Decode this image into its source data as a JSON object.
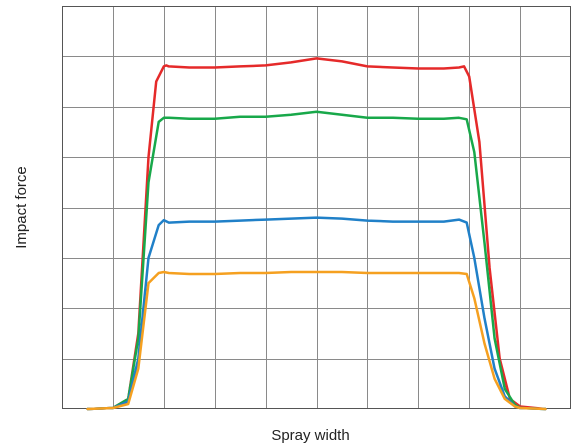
{
  "chart_data": {
    "type": "line",
    "title": "",
    "xlabel": "Spray width",
    "ylabel": "Impact force",
    "xlim": [
      0,
      10
    ],
    "ylim": [
      0,
      8
    ],
    "grid": true,
    "x_ticks_shown": false,
    "y_ticks_shown": false,
    "series": [
      {
        "color": "#e52a2a",
        "x": [
          0.5,
          1.0,
          1.3,
          1.5,
          1.7,
          1.85,
          2.0,
          2.05,
          2.1,
          2.5,
          3.0,
          3.5,
          4.0,
          4.5,
          5.0,
          5.5,
          6.0,
          6.5,
          7.0,
          7.5,
          7.8,
          7.9,
          8.0,
          8.2,
          8.4,
          8.6,
          8.8,
          9.0,
          9.5
        ],
        "y": [
          0.0,
          0.02,
          0.2,
          1.5,
          5.0,
          6.5,
          6.8,
          6.82,
          6.8,
          6.78,
          6.78,
          6.8,
          6.82,
          6.88,
          6.96,
          6.9,
          6.8,
          6.78,
          6.76,
          6.76,
          6.78,
          6.8,
          6.6,
          5.3,
          2.8,
          1.0,
          0.2,
          0.05,
          0.0
        ]
      },
      {
        "color": "#18a84a",
        "x": [
          0.5,
          1.0,
          1.3,
          1.5,
          1.7,
          1.9,
          2.0,
          2.1,
          2.5,
          3.0,
          3.5,
          4.0,
          4.5,
          5.0,
          5.5,
          6.0,
          6.5,
          7.0,
          7.5,
          7.8,
          7.95,
          8.1,
          8.3,
          8.5,
          8.7,
          8.9,
          9.0,
          9.5
        ],
        "y": [
          0.0,
          0.02,
          0.2,
          1.4,
          4.5,
          5.7,
          5.78,
          5.78,
          5.76,
          5.76,
          5.8,
          5.8,
          5.84,
          5.9,
          5.84,
          5.78,
          5.78,
          5.76,
          5.76,
          5.78,
          5.75,
          5.1,
          3.3,
          1.4,
          0.4,
          0.08,
          0.02,
          0.0
        ]
      },
      {
        "color": "#2080c8",
        "x": [
          0.5,
          1.0,
          1.3,
          1.5,
          1.7,
          1.9,
          2.0,
          2.1,
          2.5,
          3.0,
          3.5,
          4.0,
          4.5,
          5.0,
          5.5,
          6.0,
          6.5,
          7.0,
          7.5,
          7.8,
          7.95,
          8.1,
          8.3,
          8.5,
          8.7,
          8.9,
          9.0,
          9.5
        ],
        "y": [
          0.0,
          0.02,
          0.15,
          1.0,
          3.0,
          3.65,
          3.75,
          3.7,
          3.72,
          3.72,
          3.74,
          3.76,
          3.78,
          3.8,
          3.78,
          3.74,
          3.72,
          3.72,
          3.72,
          3.76,
          3.7,
          3.0,
          1.8,
          0.8,
          0.25,
          0.05,
          0.02,
          0.0
        ]
      },
      {
        "color": "#f5a020",
        "x": [
          0.5,
          1.0,
          1.3,
          1.5,
          1.7,
          1.9,
          2.0,
          2.1,
          2.5,
          3.0,
          3.5,
          4.0,
          4.5,
          5.0,
          5.5,
          6.0,
          6.5,
          7.0,
          7.5,
          7.8,
          7.95,
          8.1,
          8.3,
          8.5,
          8.7,
          8.9,
          9.0,
          9.5
        ],
        "y": [
          0.0,
          0.02,
          0.1,
          0.8,
          2.5,
          2.7,
          2.72,
          2.7,
          2.68,
          2.68,
          2.7,
          2.7,
          2.72,
          2.72,
          2.72,
          2.7,
          2.7,
          2.7,
          2.7,
          2.7,
          2.68,
          2.2,
          1.3,
          0.6,
          0.2,
          0.05,
          0.02,
          0.0
        ]
      }
    ]
  }
}
